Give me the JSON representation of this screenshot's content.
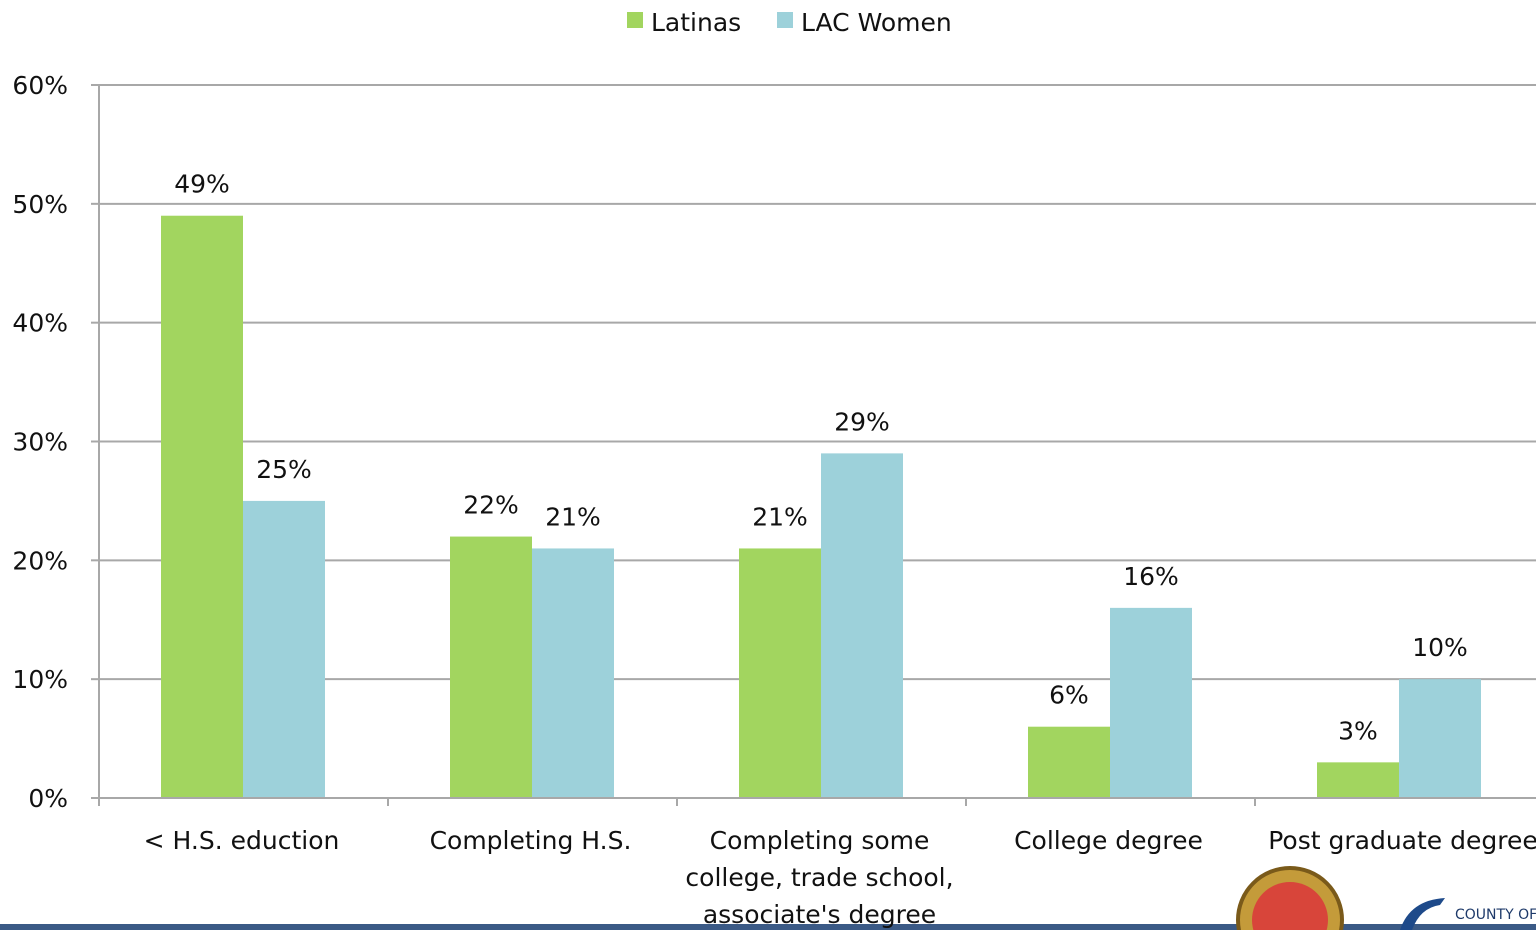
{
  "chart_data": {
    "type": "bar",
    "categories": [
      "< H.S. eduction",
      "Completing H.S.",
      "Completing some college, trade school, associate's degree",
      "College degree",
      "Post graduate degree"
    ],
    "series": [
      {
        "name": "Latinas",
        "color": "#a2d55f",
        "values": [
          49,
          22,
          21,
          6,
          3
        ],
        "value_labels": [
          "49%",
          "22%",
          "21%",
          "6%",
          "3%"
        ]
      },
      {
        "name": "LAC Women",
        "color": "#9dd1da",
        "values": [
          25,
          21,
          29,
          16,
          10
        ],
        "value_labels": [
          "25%",
          "21%",
          "29%",
          "16%",
          "10%"
        ]
      }
    ],
    "ylim": [
      0,
      60
    ],
    "yticks": [
      {
        "value": 0,
        "label": "0%"
      },
      {
        "value": 10,
        "label": "10%"
      },
      {
        "value": 20,
        "label": "20%"
      },
      {
        "value": 30,
        "label": "30%"
      },
      {
        "value": 40,
        "label": "40%"
      },
      {
        "value": 50,
        "label": "50%"
      },
      {
        "value": 60,
        "label": "60%"
      }
    ],
    "grid": true,
    "legend": "top"
  }
}
